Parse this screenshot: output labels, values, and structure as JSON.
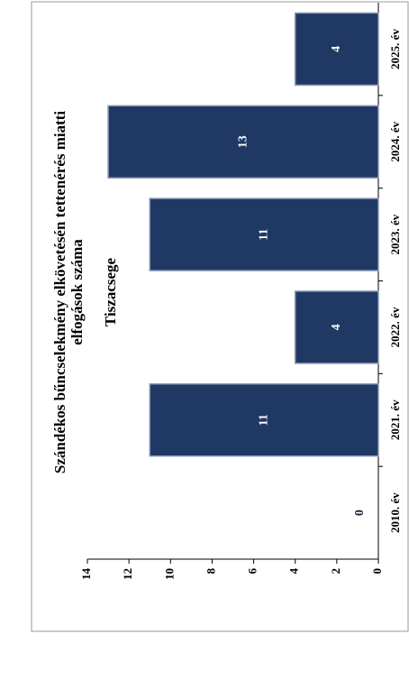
{
  "chart_data": {
    "type": "bar",
    "title": "Tiszacsege",
    "subtitle": [
      "Szándékos bűncselekmény elkövetésén tettenérés miatti",
      "elfogások száma"
    ],
    "categories": [
      "2010. év",
      "2021. év",
      "2022. év",
      "2023. év",
      "2024. év",
      "2025. év"
    ],
    "values": [
      0,
      11,
      4,
      11,
      13,
      4
    ],
    "color": "#1f3864",
    "ylim": [
      0,
      14
    ],
    "yticks": [
      0,
      2,
      4,
      6,
      8,
      10,
      12,
      14
    ],
    "grid": false
  }
}
